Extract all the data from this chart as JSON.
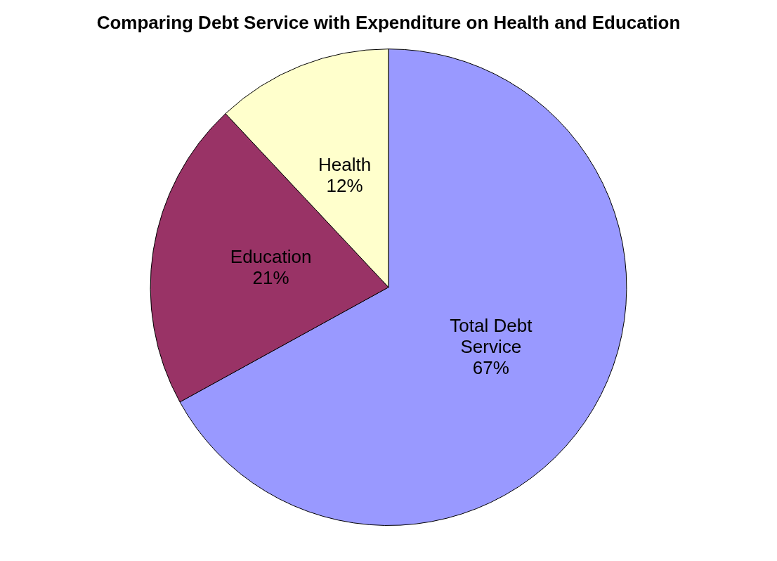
{
  "chart_data": {
    "type": "pie",
    "title": "Comparing Debt Service with Expenditure on Health and Education",
    "categories": [
      "Total Debt Service",
      "Education",
      "Health"
    ],
    "values": [
      67,
      21,
      12
    ],
    "colors": [
      "#9999ff",
      "#993366",
      "#ffffcc"
    ],
    "value_labels": [
      "67%",
      "21%",
      "12%"
    ],
    "legend": false
  }
}
